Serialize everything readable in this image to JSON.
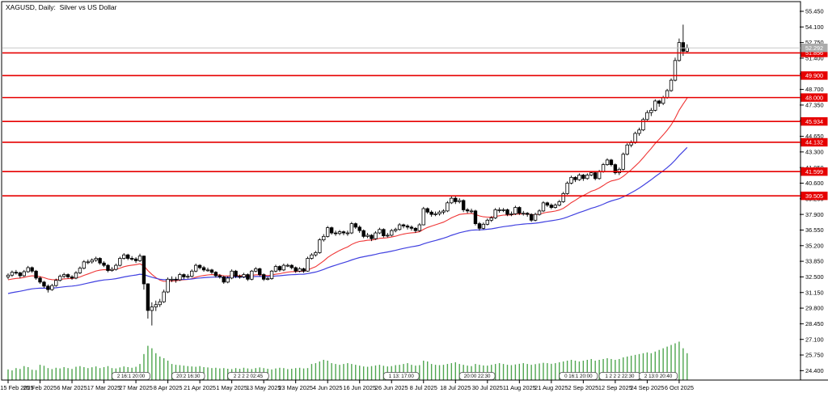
{
  "window": {
    "title": "XAGUSD, Daily:  Silver vs US Dollar"
  },
  "price_axis": {
    "tick_labels": [
      "55.450",
      "54.100",
      "52.750",
      "51.400",
      "50.050",
      "48.700",
      "47.350",
      "46.000",
      "44.650",
      "43.300",
      "41.950",
      "40.600",
      "39.250",
      "37.900",
      "36.550",
      "35.200",
      "33.850",
      "32.500",
      "31.150",
      "29.800",
      "28.450",
      "27.100",
      "25.750",
      "24.400"
    ]
  },
  "time_axis": {
    "tick_labels": [
      "15 Feb 2025",
      "25 Feb 2025",
      "6 Mar 2025",
      "17 Mar 2025",
      "27 Mar 2025",
      "8 Apr 2025",
      "21 Apr 2025",
      "1 May 2025",
      "13 May 2025",
      "23 May 2025",
      "4 Jun 2025",
      "16 Jun 2025",
      "26 Jun 2025",
      "8 Jul 2025",
      "18 Jul 2025",
      "30 Jul 2025",
      "11 Aug 2025",
      "21 Aug 2025",
      "2 Sep 2025",
      "12 Sep 2025",
      "24 Sep 2025",
      "6 Oct 2025"
    ]
  },
  "levels": [
    {
      "price": 51.856,
      "label": "51.856"
    },
    {
      "price": 49.9,
      "label": "49.900"
    },
    {
      "price": 48.0,
      "label": "48.000"
    },
    {
      "price": 45.934,
      "label": "45.934"
    },
    {
      "price": 44.132,
      "label": "44.132"
    },
    {
      "price": 41.599,
      "label": "41.599"
    },
    {
      "price": 39.505,
      "label": "39.505"
    }
  ],
  "current_price": {
    "price": 52.292,
    "label": "52.292"
  },
  "session_markers": [
    {
      "bar": 26,
      "text": "2 16:1 20:00"
    },
    {
      "bar": 41,
      "text": "20:2 16:30"
    },
    {
      "bar": 55,
      "text": "2 2 2 2 02:45"
    },
    {
      "bar": 94,
      "text": "1 13: 17:00"
    },
    {
      "bar": 113,
      "text": "20:00 22:30"
    },
    {
      "bar": 138,
      "text": "0 16:1 20:00"
    },
    {
      "bar": 148,
      "text": "1 2 2 2 22:30"
    },
    {
      "bar": 158,
      "text": "2 13:0 20:40"
    }
  ],
  "colors": {
    "background": "#ffffff",
    "frame": "#000000",
    "axis_text": "#000000",
    "level_line": "#e60000",
    "level_tag_bg": "#e60000",
    "level_tag_text": "#ffffff",
    "current_line": "#c8c8c8",
    "current_tag_bg": "#ababab",
    "current_tag_text": "#ffffff",
    "bull_body": "#ffffff",
    "bear_body": "#000000",
    "candle_outline": "#000000",
    "volume": "#4fa64f",
    "ma_fast": "#ef3535",
    "ma_slow": "#4141e0"
  },
  "chart_data": {
    "type": "candlestick",
    "title": "XAGUSD, Daily: Silver vs US Dollar",
    "symbol": "XAGUSD",
    "timeframe": "Daily",
    "ylim": [
      23.58,
      55.87
    ],
    "x_range": [
      "15 Feb 2025",
      "10 Oct 2025"
    ],
    "horizontal_lines": [
      51.856,
      49.9,
      48.0,
      45.934,
      44.132,
      41.599,
      39.505
    ],
    "last_price": 52.292,
    "indicators": [
      {
        "name": "ma-fast",
        "type": "ema",
        "period": 18,
        "seed": 32.2,
        "color": "#ef3535"
      },
      {
        "name": "ma-slow",
        "type": "ema",
        "period": 50,
        "seed": 31.0,
        "color": "#4141e0"
      }
    ],
    "ohlc": [
      [
        32.5,
        32.8,
        32.3,
        32.65
      ],
      [
        32.65,
        33.05,
        32.5,
        32.9
      ],
      [
        32.9,
        33.1,
        32.7,
        32.85
      ],
      [
        32.85,
        32.95,
        32.4,
        32.6
      ],
      [
        32.6,
        33.1,
        32.5,
        32.95
      ],
      [
        32.95,
        33.45,
        32.85,
        33.3
      ],
      [
        33.3,
        33.4,
        32.85,
        33.0
      ],
      [
        33.0,
        33.1,
        32.25,
        32.4
      ],
      [
        32.4,
        32.55,
        31.9,
        32.05
      ],
      [
        32.05,
        32.15,
        31.55,
        31.7
      ],
      [
        31.7,
        31.85,
        31.15,
        31.4
      ],
      [
        31.4,
        31.9,
        31.3,
        31.75
      ],
      [
        31.75,
        32.35,
        31.65,
        32.2
      ],
      [
        32.2,
        32.7,
        32.1,
        32.55
      ],
      [
        32.55,
        32.85,
        32.4,
        32.7
      ],
      [
        32.7,
        32.8,
        32.35,
        32.5
      ],
      [
        32.5,
        32.65,
        32.25,
        32.4
      ],
      [
        32.4,
        33.0,
        32.3,
        32.85
      ],
      [
        32.85,
        33.4,
        32.75,
        33.25
      ],
      [
        33.25,
        33.95,
        33.15,
        33.8
      ],
      [
        33.8,
        34.0,
        33.6,
        33.8
      ],
      [
        33.8,
        34.1,
        33.65,
        33.95
      ],
      [
        33.95,
        34.25,
        33.8,
        34.1
      ],
      [
        34.1,
        34.2,
        33.55,
        33.7
      ],
      [
        33.7,
        33.85,
        33.35,
        33.5
      ],
      [
        33.5,
        33.6,
        32.9,
        33.05
      ],
      [
        33.05,
        33.35,
        32.95,
        33.15
      ],
      [
        33.15,
        33.65,
        33.05,
        33.5
      ],
      [
        33.5,
        34.25,
        33.4,
        34.1
      ],
      [
        34.1,
        34.55,
        34.0,
        34.4
      ],
      [
        34.4,
        34.5,
        33.95,
        34.1
      ],
      [
        34.1,
        34.3,
        33.9,
        34.05
      ],
      [
        34.05,
        34.2,
        33.7,
        33.9
      ],
      [
        33.9,
        34.5,
        33.8,
        34.3
      ],
      [
        34.3,
        34.35,
        31.4,
        31.9
      ],
      [
        31.9,
        31.95,
        28.9,
        29.6
      ],
      [
        29.6,
        30.3,
        28.3,
        29.9
      ],
      [
        29.9,
        30.45,
        29.55,
        30.1
      ],
      [
        30.1,
        30.6,
        29.9,
        30.35
      ],
      [
        30.35,
        31.4,
        30.25,
        31.2
      ],
      [
        31.2,
        32.45,
        31.1,
        32.3
      ],
      [
        32.3,
        32.55,
        32.05,
        32.3
      ],
      [
        32.3,
        32.5,
        32.0,
        32.25
      ],
      [
        32.25,
        32.85,
        32.15,
        32.7
      ],
      [
        32.7,
        32.8,
        32.3,
        32.5
      ],
      [
        32.5,
        32.75,
        32.35,
        32.55
      ],
      [
        32.55,
        33.15,
        32.45,
        33.0
      ],
      [
        33.0,
        33.65,
        32.9,
        33.5
      ],
      [
        33.5,
        33.6,
        33.15,
        33.3
      ],
      [
        33.3,
        33.45,
        32.95,
        33.1
      ],
      [
        33.1,
        33.3,
        32.95,
        33.1
      ],
      [
        33.1,
        33.2,
        32.75,
        32.9
      ],
      [
        32.9,
        33.0,
        32.45,
        32.6
      ],
      [
        32.6,
        32.75,
        32.35,
        32.5
      ],
      [
        32.5,
        32.6,
        31.9,
        32.05
      ],
      [
        32.05,
        32.55,
        31.95,
        32.4
      ],
      [
        32.4,
        33.15,
        32.3,
        33.0
      ],
      [
        33.0,
        33.1,
        32.4,
        32.55
      ],
      [
        32.55,
        32.7,
        32.35,
        32.5
      ],
      [
        32.5,
        32.85,
        32.4,
        32.7
      ],
      [
        32.7,
        32.8,
        32.15,
        32.3
      ],
      [
        32.3,
        33.1,
        32.2,
        33.0
      ],
      [
        33.0,
        33.35,
        32.9,
        33.2
      ],
      [
        33.2,
        33.3,
        32.55,
        32.7
      ],
      [
        32.7,
        32.8,
        32.15,
        32.3
      ],
      [
        32.3,
        32.5,
        32.2,
        32.35
      ],
      [
        32.35,
        33.1,
        32.25,
        33.0
      ],
      [
        33.0,
        33.55,
        32.9,
        33.4
      ],
      [
        33.4,
        33.5,
        32.95,
        33.1
      ],
      [
        33.1,
        33.65,
        33.0,
        33.5
      ],
      [
        33.5,
        33.65,
        33.35,
        33.5
      ],
      [
        33.5,
        33.6,
        33.15,
        33.3
      ],
      [
        33.3,
        33.4,
        32.85,
        33.0
      ],
      [
        33.0,
        33.35,
        32.9,
        33.2
      ],
      [
        33.2,
        33.3,
        32.85,
        33.0
      ],
      [
        33.0,
        34.25,
        32.95,
        34.1
      ],
      [
        34.1,
        34.55,
        34.0,
        34.4
      ],
      [
        34.4,
        34.75,
        34.25,
        34.6
      ],
      [
        34.6,
        35.85,
        34.5,
        35.7
      ],
      [
        35.7,
        36.2,
        35.55,
        36.0
      ],
      [
        36.0,
        36.9,
        35.9,
        36.75
      ],
      [
        36.75,
        36.85,
        36.15,
        36.3
      ],
      [
        36.3,
        36.5,
        36.05,
        36.25
      ],
      [
        36.25,
        36.55,
        36.1,
        36.4
      ],
      [
        36.4,
        36.5,
        36.1,
        36.3
      ],
      [
        36.3,
        36.5,
        36.05,
        36.3
      ],
      [
        36.3,
        37.25,
        36.2,
        37.1
      ],
      [
        37.1,
        37.2,
        36.65,
        36.8
      ],
      [
        36.8,
        36.95,
        36.3,
        36.5
      ],
      [
        36.5,
        36.6,
        35.85,
        36.0
      ],
      [
        36.0,
        36.3,
        35.85,
        36.1
      ],
      [
        36.1,
        36.2,
        35.6,
        35.8
      ],
      [
        35.8,
        36.45,
        35.7,
        36.3
      ],
      [
        36.3,
        36.75,
        36.2,
        36.6
      ],
      [
        36.6,
        36.7,
        35.9,
        36.05
      ],
      [
        36.05,
        36.3,
        35.9,
        36.1
      ],
      [
        36.1,
        36.65,
        36.0,
        36.5
      ],
      [
        36.5,
        36.75,
        36.35,
        36.6
      ],
      [
        36.6,
        37.15,
        36.5,
        37.0
      ],
      [
        37.0,
        37.1,
        36.7,
        36.9
      ],
      [
        36.9,
        37.05,
        36.6,
        36.8
      ],
      [
        36.8,
        36.95,
        36.5,
        36.7
      ],
      [
        36.7,
        36.8,
        36.3,
        36.5
      ],
      [
        36.5,
        37.15,
        36.4,
        37.0
      ],
      [
        37.0,
        38.55,
        36.95,
        38.4
      ],
      [
        38.4,
        38.5,
        37.95,
        38.1
      ],
      [
        38.1,
        38.25,
        37.7,
        37.9
      ],
      [
        37.9,
        38.15,
        37.75,
        37.95
      ],
      [
        37.95,
        38.25,
        37.8,
        38.1
      ],
      [
        38.1,
        38.35,
        37.9,
        38.2
      ],
      [
        38.2,
        39.05,
        38.1,
        38.9
      ],
      [
        38.9,
        39.55,
        38.8,
        39.3
      ],
      [
        39.3,
        39.45,
        38.8,
        39.0
      ],
      [
        39.0,
        39.3,
        38.85,
        39.1
      ],
      [
        39.1,
        39.2,
        38.1,
        38.3
      ],
      [
        38.3,
        38.45,
        38.0,
        38.2
      ],
      [
        38.2,
        38.4,
        38.0,
        38.2
      ],
      [
        38.2,
        38.3,
        36.95,
        37.1
      ],
      [
        37.1,
        37.25,
        36.5,
        36.7
      ],
      [
        36.7,
        37.2,
        36.6,
        37.05
      ],
      [
        37.05,
        37.55,
        36.95,
        37.4
      ],
      [
        37.4,
        37.75,
        37.25,
        37.6
      ],
      [
        37.6,
        38.45,
        37.5,
        38.3
      ],
      [
        38.3,
        38.5,
        38.05,
        38.3
      ],
      [
        38.3,
        38.45,
        38.1,
        38.3
      ],
      [
        38.3,
        38.4,
        37.75,
        37.9
      ],
      [
        37.9,
        38.15,
        37.75,
        37.95
      ],
      [
        37.95,
        38.65,
        37.85,
        38.5
      ],
      [
        38.5,
        38.6,
        37.85,
        38.0
      ],
      [
        38.0,
        38.2,
        37.8,
        38.0
      ],
      [
        38.0,
        38.1,
        37.7,
        37.9
      ],
      [
        37.9,
        38.0,
        37.25,
        37.4
      ],
      [
        37.4,
        38.05,
        37.3,
        37.9
      ],
      [
        37.9,
        38.35,
        37.8,
        38.2
      ],
      [
        38.2,
        39.05,
        38.1,
        38.9
      ],
      [
        38.9,
        39.0,
        38.55,
        38.7
      ],
      [
        38.7,
        38.85,
        38.35,
        38.5
      ],
      [
        38.5,
        38.85,
        38.4,
        38.7
      ],
      [
        38.7,
        39.15,
        38.6,
        39.0
      ],
      [
        39.0,
        39.85,
        38.9,
        39.7
      ],
      [
        39.7,
        40.75,
        39.6,
        40.6
      ],
      [
        40.6,
        41.25,
        40.5,
        41.1
      ],
      [
        41.1,
        41.2,
        40.7,
        40.9
      ],
      [
        40.9,
        41.45,
        40.8,
        41.3
      ],
      [
        41.3,
        41.4,
        40.8,
        41.0
      ],
      [
        41.0,
        41.45,
        40.9,
        41.3
      ],
      [
        41.3,
        41.65,
        41.2,
        41.5
      ],
      [
        41.5,
        41.6,
        40.85,
        41.0
      ],
      [
        41.0,
        41.75,
        40.9,
        41.6
      ],
      [
        41.6,
        42.35,
        41.5,
        42.2
      ],
      [
        42.2,
        42.75,
        42.1,
        42.6
      ],
      [
        42.6,
        42.7,
        42.05,
        42.2
      ],
      [
        42.2,
        42.3,
        41.35,
        41.5
      ],
      [
        41.5,
        41.95,
        41.3,
        41.8
      ],
      [
        41.8,
        43.25,
        41.7,
        43.1
      ],
      [
        43.1,
        44.05,
        43.0,
        43.9
      ],
      [
        43.9,
        44.3,
        43.7,
        44.1
      ],
      [
        44.1,
        45.05,
        44.0,
        44.9
      ],
      [
        44.9,
        45.4,
        44.7,
        45.2
      ],
      [
        45.2,
        46.25,
        45.1,
        46.1
      ],
      [
        46.1,
        46.9,
        46.0,
        46.7
      ],
      [
        46.7,
        47.1,
        46.4,
        46.9
      ],
      [
        46.9,
        47.85,
        46.8,
        47.7
      ],
      [
        47.7,
        47.8,
        47.2,
        47.5
      ],
      [
        47.5,
        48.15,
        47.35,
        48.0
      ],
      [
        48.0,
        48.75,
        47.9,
        48.6
      ],
      [
        48.6,
        49.65,
        48.5,
        49.5
      ],
      [
        49.5,
        51.45,
        49.4,
        51.2
      ],
      [
        51.2,
        53.1,
        51.1,
        52.75
      ],
      [
        52.75,
        54.3,
        51.6,
        52.0
      ],
      [
        52.0,
        52.6,
        51.9,
        52.29
      ]
    ],
    "volume": [
      620,
      560,
      700,
      650,
      820,
      760,
      600,
      580,
      900,
      840,
      700,
      640,
      720,
      680,
      760,
      700,
      650,
      780,
      820,
      760,
      700,
      750,
      800,
      700,
      760,
      820,
      700,
      680,
      740,
      800,
      760,
      720,
      780,
      950,
      1550,
      2050,
      1900,
      1600,
      1400,
      1300,
      1150,
      950,
      900,
      880,
      850,
      820,
      800,
      780,
      820,
      760,
      740,
      700,
      720,
      680,
      700,
      660,
      640,
      700,
      660,
      720,
      680,
      640,
      700,
      740,
      700,
      660,
      620,
      680,
      720,
      700,
      640,
      660,
      700,
      720,
      680,
      700,
      950,
      1000,
      1100,
      1200,
      1150,
      1000,
      950,
      900,
      950,
      1000,
      950,
      900,
      850,
      800,
      780,
      820,
      860,
      900,
      840,
      800,
      820,
      880,
      900,
      950,
      1000,
      900,
      850,
      880,
      1150,
      1100,
      950,
      900,
      880,
      900,
      950,
      1000,
      1050,
      950,
      900,
      850,
      820,
      950,
      900,
      860,
      850,
      900,
      950,
      1000,
      950,
      900,
      880,
      920,
      960,
      1000,
      950,
      900,
      940,
      980,
      1020,
      1000,
      960,
      1000,
      1050,
      1100,
      1150,
      1200,
      1150,
      1100,
      1150,
      1200,
      1250,
      1150,
      1200,
      1250,
      1300,
      1250,
      1200,
      1250,
      1350,
      1400,
      1450,
      1500,
      1550,
      1600,
      1650,
      1600,
      1700,
      1800,
      1900,
      2000,
      2100,
      2200,
      2300,
      1900,
      1600
    ]
  }
}
